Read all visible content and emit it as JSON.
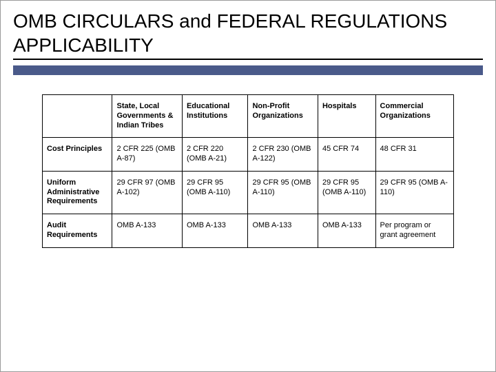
{
  "title": "OMB CIRCULARS and FEDERAL REGULATIONS APPLICABILITY",
  "colors": {
    "title_bar": "#4a5a8a",
    "border": "#000000",
    "background": "#ffffff",
    "text": "#000000"
  },
  "typography": {
    "title_fontsize": 28,
    "cell_fontsize": 11,
    "header_weight": "bold"
  },
  "table": {
    "type": "table",
    "columns": [
      "",
      "State, Local Governments & Indian Tribes",
      "Educational Institutions",
      "Non-Profit Organizations",
      "Hospitals",
      "Commercial Organizations"
    ],
    "row_headers": [
      "Cost Principles",
      "Uniform Administrative Requirements",
      "Audit Requirements"
    ],
    "rows": [
      [
        "2 CFR 225 (OMB A-87)",
        "2 CFR 220 (OMB A-21)",
        "2 CFR 230 (OMB A-122)",
        "45 CFR 74",
        "48 CFR 31"
      ],
      [
        "29 CFR 97 (OMB A-102)",
        "29 CFR 95 (OMB A-110)",
        "29 CFR 95 (OMB A-110)",
        "29 CFR 95 (OMB A-110)",
        "29 CFR 95 (OMB A-110)"
      ],
      [
        "OMB A-133",
        "OMB A-133",
        "OMB A-133",
        "OMB A-133",
        "Per program or grant agreement"
      ]
    ],
    "column_widths_pct": [
      17,
      17,
      16,
      17,
      14,
      19
    ]
  }
}
